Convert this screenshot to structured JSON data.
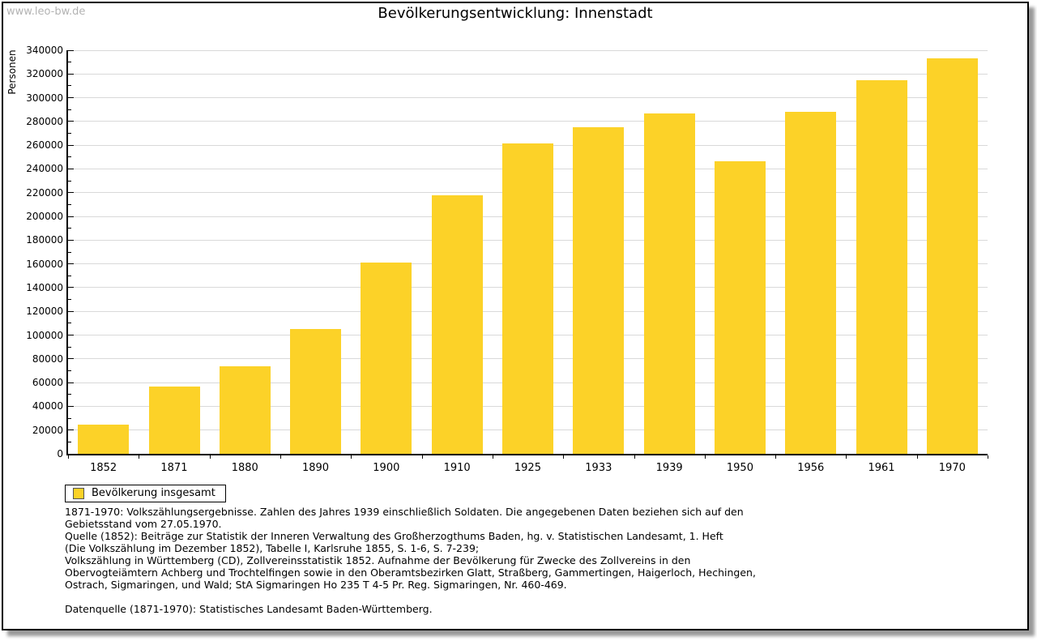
{
  "watermark": "www.leo-bw.de",
  "title": "Bevölkerungsentwicklung: Innenstadt",
  "chart_data": {
    "type": "bar",
    "title": "Bevölkerungsentwicklung: Innenstadt",
    "xlabel": "",
    "ylabel": "Personen",
    "categories": [
      "1852",
      "1871",
      "1880",
      "1890",
      "1900",
      "1910",
      "1925",
      "1933",
      "1939",
      "1950",
      "1956",
      "1961",
      "1970"
    ],
    "series": [
      {
        "name": "Bevölkerung insgesamt",
        "color": "#fcd228",
        "values": [
          24500,
          56500,
          74000,
          105500,
          161000,
          218000,
          261500,
          275500,
          287000,
          246500,
          288000,
          315000,
          333000
        ]
      }
    ],
    "ylim": [
      0,
      340000
    ],
    "ytick_major": 20000,
    "ytick_minor": 10000,
    "grid": "horizontal-major",
    "legend_position": "bottom-left"
  },
  "legend": {
    "items": [
      {
        "label": "Bevölkerung insgesamt",
        "swatch_color": "#fcd228"
      }
    ]
  },
  "notes": [
    "1871-1970: Volkszählungsergebnisse. Zahlen des Jahres 1939 einschließlich Soldaten. Die angegebenen Daten beziehen sich auf den",
    "Gebietsstand vom 27.05.1970.",
    "Quelle (1852): Beiträge zur Statistik der Inneren Verwaltung des Großherzogthums Baden, hg. v. Statistischen Landesamt, 1. Heft",
    "(Die Volkszählung im Dezember 1852), Tabelle I, Karlsruhe 1855, S. 1-6, S. 7-239;",
    "Volkszählung in Württemberg (CD), Zollvereinsstatistik 1852. Aufnahme der Bevölkerung für Zwecke des Zollvereins in den",
    "Obervogteiämtern Achberg und Trochtelfingen sowie in den Oberamtsbezirken Glatt, Straßberg, Gammertingen, Haigerloch, Hechingen,",
    "Ostrach, Sigmaringen, und Wald; StA Sigmaringen Ho 235 T 4-5 Pr. Reg. Sigmaringen, Nr. 460-469.",
    "",
    "Datenquelle (1871-1970): Statistisches Landesamt Baden-Württemberg."
  ],
  "colors": {
    "bar": "#fcd228",
    "gridline": "#d9d9d9",
    "axis": "#000000",
    "watermark": "#b3b3b3",
    "panel_shadow": "#9a9a9a"
  }
}
